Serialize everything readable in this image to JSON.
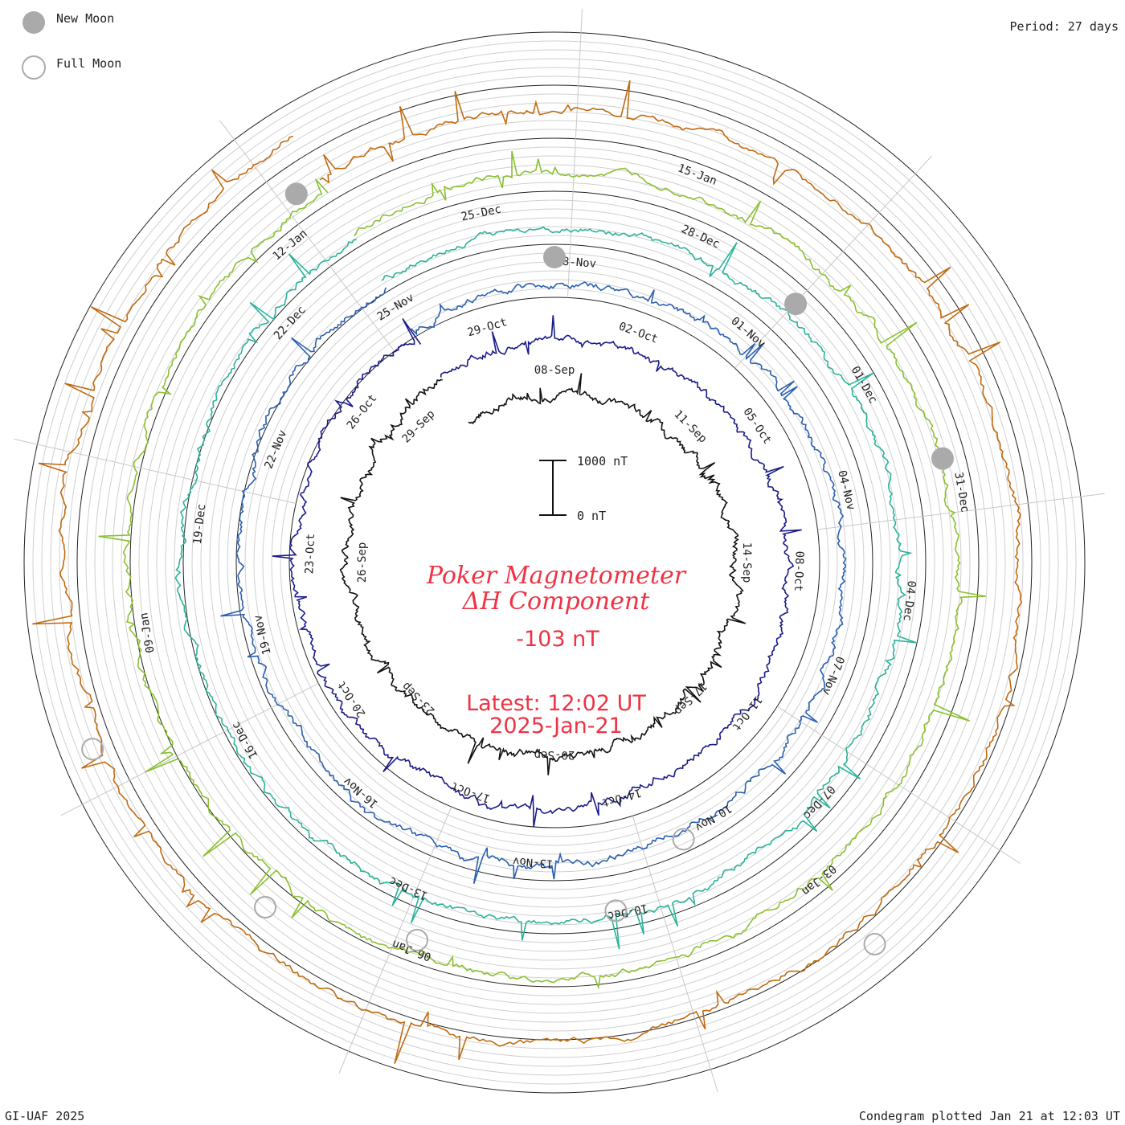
{
  "chart_data": {
    "type": "line",
    "title": "Poker Magnetometer",
    "subtitle": "ΔH Component",
    "current_value": "-103 nT",
    "latest_line1": "Latest: 12:02 UT",
    "latest_line2": "2025-Jan-21",
    "period": "Period: 27 days",
    "scale_top": "1000 nT",
    "scale_bottom": "0 nT",
    "legend": [
      {
        "label": "New Moon",
        "symbol": "filled-circle"
      },
      {
        "label": "Full Moon",
        "symbol": "open-circle"
      }
    ],
    "footer_left": "GI-UAF 2025",
    "footer_right": "Condegram plotted Jan 21 at 12:03 UT",
    "rings": [
      {
        "color": "#111111",
        "dates": [
          "08-Sep",
          "11-Sep",
          "14-Sep",
          "17-Sep",
          "20-Sep",
          "23-Sep",
          "26-Sep",
          "29-Sep"
        ]
      },
      {
        "color": "#1a1a8a",
        "dates": [
          "02-Oct",
          "05-Oct",
          "08-Oct",
          "11-Oct",
          "14-Oct",
          "17-Oct",
          "20-Oct",
          "23-Oct",
          "26-Oct",
          "29-Oct"
        ]
      },
      {
        "color": "#2a5fb0",
        "dates": [
          "01-Nov",
          "04-Nov",
          "07-Nov",
          "10-Nov",
          "13-Nov",
          "16-Nov",
          "19-Nov",
          "22-Nov",
          "25-Nov",
          "28-Nov"
        ]
      },
      {
        "color": "#2bb39a",
        "dates": [
          "01-Dec",
          "04-Dec",
          "07-Dec",
          "10-Dec",
          "13-Dec",
          "16-Dec",
          "19-Dec",
          "22-Dec",
          "25-Dec",
          "28-Dec"
        ]
      },
      {
        "color": "#8ac030",
        "dates": [
          "31-Dec",
          "03-Jan",
          "06-Jan",
          "09-Jan",
          "12-Jan",
          "15-Jan"
        ]
      }
    ],
    "moons": [
      {
        "type": "new",
        "angle_deg": 0
      },
      {
        "type": "new",
        "angle_deg": 43
      },
      {
        "type": "new",
        "angle_deg": 75
      },
      {
        "type": "new",
        "angle_deg": -35
      },
      {
        "type": "full",
        "angle_deg": 140
      },
      {
        "type": "full",
        "angle_deg": 155
      },
      {
        "type": "full",
        "angle_deg": 170
      },
      {
        "type": "full",
        "angle_deg": 200
      },
      {
        "type": "full",
        "angle_deg": 220
      },
      {
        "type": "full",
        "angle_deg": 248
      }
    ]
  }
}
